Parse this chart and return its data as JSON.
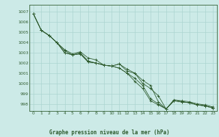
{
  "title": "Graphe pression niveau de la mer (hPa)",
  "bg_color": "#cceae7",
  "grid_color": "#aad4d0",
  "line_color": "#2d5a2d",
  "marker_color": "#2d5a2d",
  "xlim": [
    -0.5,
    23.5
  ],
  "ylim": [
    997.3,
    1007.7
  ],
  "yticks": [
    998,
    999,
    1000,
    1001,
    1002,
    1003,
    1004,
    1005,
    1006,
    1007
  ],
  "xticks": [
    0,
    1,
    2,
    3,
    4,
    5,
    6,
    7,
    8,
    9,
    10,
    11,
    12,
    13,
    14,
    15,
    16,
    17,
    18,
    19,
    20,
    21,
    22,
    23
  ],
  "series": [
    [
      1006.8,
      1005.2,
      1004.7,
      1004.0,
      1003.0,
      1002.8,
      1002.9,
      1002.1,
      1002.0,
      1001.8,
      1001.7,
      1001.9,
      1001.2,
      1001.0,
      1000.0,
      999.5,
      998.8,
      997.5,
      998.3,
      998.2,
      998.1,
      997.9,
      997.8,
      997.6
    ],
    [
      1006.8,
      1005.2,
      1004.7,
      1004.0,
      1003.0,
      1002.8,
      1002.9,
      1002.1,
      1002.0,
      1001.8,
      1001.7,
      1001.5,
      1001.0,
      1000.2,
      999.5,
      998.3,
      997.9,
      997.5,
      998.3,
      998.2,
      998.1,
      997.9,
      997.8,
      997.6
    ],
    [
      1006.8,
      1005.2,
      1004.7,
      1004.0,
      1003.2,
      1002.8,
      1003.0,
      1002.2,
      1002.0,
      1001.8,
      1001.7,
      1001.5,
      1001.0,
      1000.5,
      999.8,
      998.5,
      998.0,
      997.5,
      998.3,
      998.2,
      998.1,
      997.9,
      997.8,
      997.6
    ],
    [
      1006.8,
      1005.2,
      1004.7,
      1004.0,
      1003.3,
      1002.9,
      1003.1,
      1002.5,
      1002.3,
      1001.8,
      1001.7,
      1001.9,
      1001.4,
      1001.0,
      1000.3,
      999.8,
      998.2,
      997.5,
      998.4,
      998.3,
      998.2,
      998.0,
      997.9,
      997.7
    ]
  ]
}
